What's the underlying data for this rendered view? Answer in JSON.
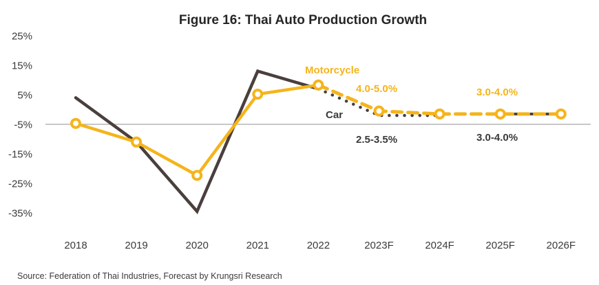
{
  "chart_data": {
    "type": "line",
    "title": "Figure 16: Thai Auto Production Growth",
    "xlabel": "",
    "ylabel": "",
    "categories": [
      "2018",
      "2019",
      "2020",
      "2021",
      "2022",
      "2023F",
      "2024F",
      "2025F",
      "2026F"
    ],
    "y_ticks": [
      "25%",
      "15%",
      "5%",
      "-5%",
      "-15%",
      "-25%",
      "-35%"
    ],
    "y_tick_values": [
      25,
      15,
      5,
      -5,
      -15,
      -25,
      -35
    ],
    "ylim": [
      -35,
      25
    ],
    "grid": false,
    "zero_line": true,
    "series": [
      {
        "name": "Car",
        "color": "#4a3f3d",
        "values": [
          9.0,
          -6.0,
          -29.5,
          18.0,
          12.0,
          3.0,
          3.0,
          3.5,
          3.5
        ],
        "markers": false,
        "style_actual": "solid",
        "style_forecast": "dotted"
      },
      {
        "name": "Motorcycle",
        "color": "#f5b41b",
        "values": [
          0.3,
          -6.0,
          -17.3,
          10.2,
          13.3,
          4.5,
          3.5,
          3.5,
          3.5
        ],
        "markers": true,
        "style_actual": "solid",
        "style_forecast": "dashed"
      }
    ],
    "forecast_start_index": 4,
    "annotations": [
      {
        "text": "Motorcycle",
        "series": "Motorcycle"
      },
      {
        "text": "Car",
        "series": "Car"
      },
      {
        "text": "4.0-5.0%",
        "series": "Motorcycle",
        "near": "2023F"
      },
      {
        "text": "2.5-3.5%",
        "series": "Car",
        "near": "2023F"
      },
      {
        "text": "3.0-4.0%",
        "series": "Motorcycle",
        "near": "2025F"
      },
      {
        "text": "3.0-4.0%",
        "series": "Car",
        "near": "2025F"
      }
    ],
    "source": "Source: Federation of Thai Industries, Forecast by Krungsri Research"
  }
}
